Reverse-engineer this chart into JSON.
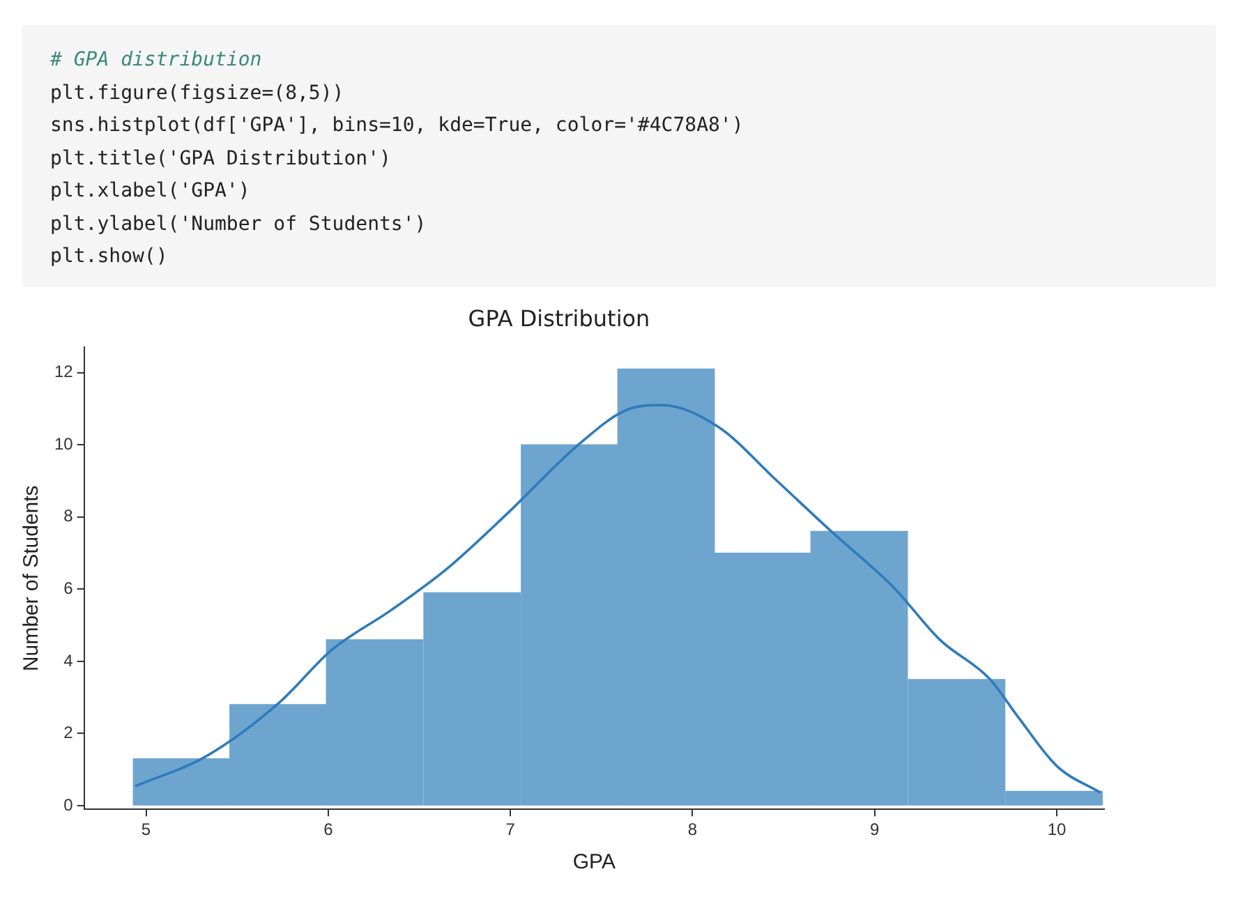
{
  "chart_data": {
    "type": "histogram",
    "title": "GPA Distribution",
    "xlabel": "GPA",
    "ylabel": "Number of Students",
    "annotations": [
      "# GPA distribution",
      "plt.figure(figsize=(8,5))",
      "sns.histplot(df['GPA'], bins=10, kde=True, color='#4C78A8')",
      "plt.title('GPA Distribution')",
      "plt.xlabel('GPA')",
      "plt.ylabel('Number of Students')",
      "plt.show()"
    ],
    "bins": [
      4.93,
      5.46,
      5.99,
      6.52,
      7.06,
      7.59,
      8.12,
      8.65,
      9.18,
      9.72,
      10.25
    ],
    "values": [
      1.3,
      2.8,
      4.6,
      5.9,
      10,
      12.1,
      7,
      7.6,
      3.5,
      0.4
    ],
    "color": "#6ea5cf",
    "series": [
      {
        "type": "line",
        "color": "#2f7bbd",
        "x": [
          4.94,
          5.33,
          5.73,
          6.02,
          6.34,
          6.66,
          6.98,
          7.38,
          7.64,
          7.83,
          8.14,
          8.46,
          8.76,
          9.1,
          9.36,
          9.63,
          9.79,
          10.0,
          10.24
        ],
        "values": [
          0.54,
          1.37,
          2.85,
          4.32,
          5.4,
          6.6,
          8.08,
          10.03,
          10.97,
          11.1,
          10.5,
          9.02,
          7.61,
          6.07,
          4.59,
          3.52,
          2.44,
          1.1,
          0.36
        ]
      }
    ],
    "xlim": [
      4.66,
      10.26
    ],
    "ylim": [
      -0.1,
      12.7
    ],
    "xticks": [
      5,
      6,
      7,
      8,
      9,
      10
    ],
    "yticks": [
      0,
      2,
      4,
      6,
      8,
      10,
      12
    ],
    "grid": false,
    "legend": false,
    "marker": "none",
    "line_style": "solid"
  }
}
